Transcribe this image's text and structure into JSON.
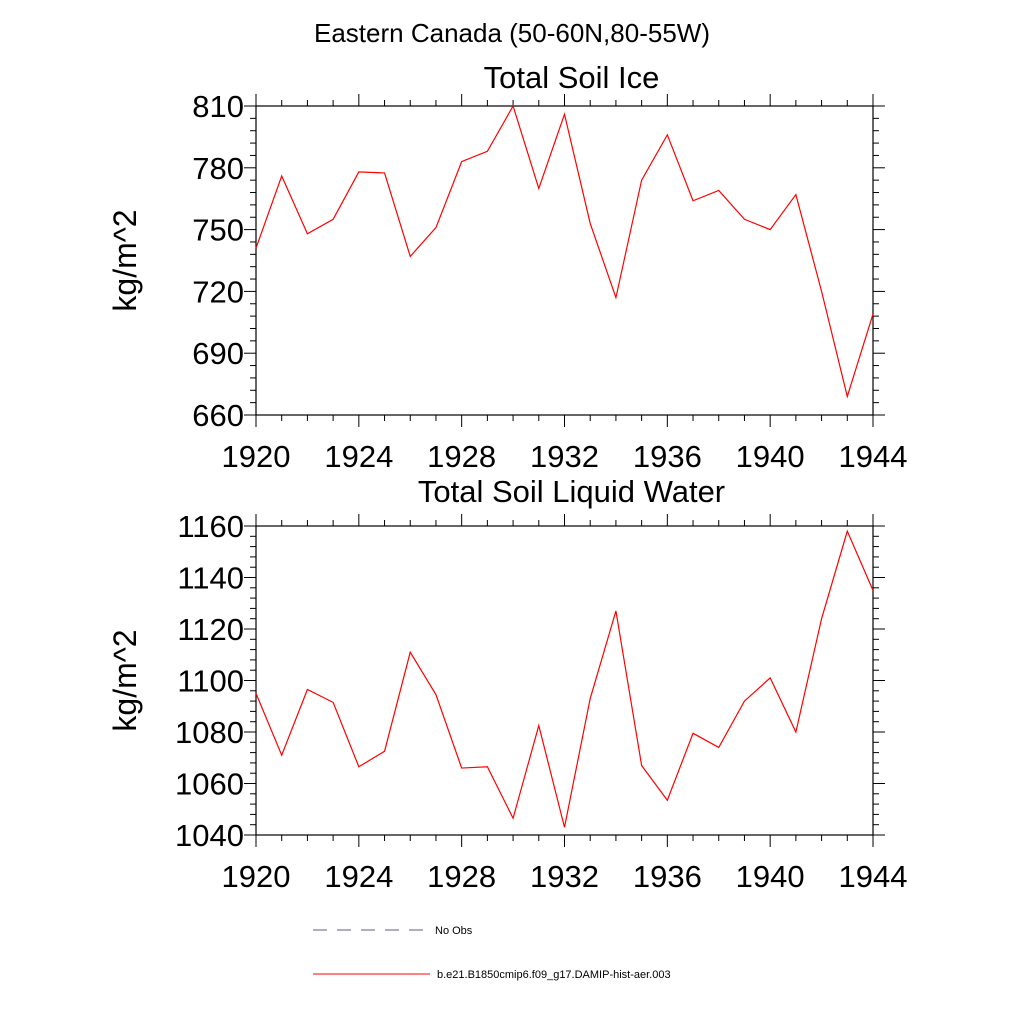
{
  "figure": {
    "super_title": "Eastern Canada (50-60N,80-55W)",
    "legend": {
      "items": [
        {
          "label": "No Obs",
          "style": "dashed",
          "color": "#5a5a8a"
        },
        {
          "label": "b.e21.B1850cmip6.f09_g17.DAMIP-hist-aer.003",
          "style": "solid",
          "color": "#ff0000"
        }
      ]
    }
  },
  "chart_data": [
    {
      "type": "line",
      "title": "Total Soil Ice",
      "xlabel": "",
      "ylabel": "kg/m^2",
      "xlim": [
        1920,
        1944
      ],
      "ylim": [
        660,
        810
      ],
      "xticks": [
        1920,
        1924,
        1928,
        1932,
        1936,
        1940,
        1944
      ],
      "yticks": [
        660,
        690,
        720,
        750,
        780,
        810
      ],
      "grid": false,
      "series": [
        {
          "color": "#ff0000",
          "x": [
            1920,
            1921,
            1922,
            1923,
            1924,
            1925,
            1926,
            1927,
            1928,
            1929,
            1930,
            1931,
            1932,
            1933,
            1934,
            1935,
            1936,
            1937,
            1938,
            1939,
            1940,
            1941,
            1942,
            1943,
            1944
          ],
          "y": [
            741,
            776,
            748,
            755,
            778,
            777.5,
            737,
            751,
            783,
            788,
            810,
            770,
            806,
            753,
            717,
            774,
            796,
            764,
            769,
            755,
            750,
            767,
            720,
            669,
            709
          ]
        }
      ]
    },
    {
      "type": "line",
      "title": "Total Soil Liquid Water",
      "xlabel": "",
      "ylabel": "kg/m^2",
      "xlim": [
        1920,
        1944
      ],
      "ylim": [
        1040,
        1160
      ],
      "xticks": [
        1920,
        1924,
        1928,
        1932,
        1936,
        1940,
        1944
      ],
      "yticks": [
        1040,
        1060,
        1080,
        1100,
        1120,
        1140,
        1160
      ],
      "grid": false,
      "series": [
        {
          "color": "#ff0000",
          "x": [
            1920,
            1921,
            1922,
            1923,
            1924,
            1925,
            1926,
            1927,
            1928,
            1929,
            1930,
            1931,
            1932,
            1933,
            1934,
            1935,
            1936,
            1937,
            1938,
            1939,
            1940,
            1941,
            1942,
            1943,
            1944
          ],
          "y": [
            1095,
            1071,
            1096.5,
            1091.5,
            1066.5,
            1072.5,
            1111,
            1094.5,
            1066,
            1066.5,
            1046.5,
            1082.5,
            1043,
            1093,
            1127,
            1067,
            1053.5,
            1079.5,
            1074,
            1092,
            1101,
            1080,
            1124,
            1158,
            1135
          ]
        }
      ]
    }
  ]
}
